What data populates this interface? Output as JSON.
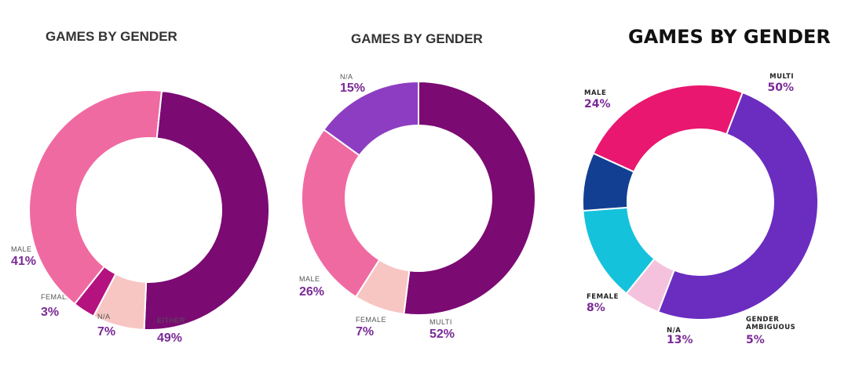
{
  "chart_data": [
    {
      "type": "pie",
      "title": "GAMES BY GENDER",
      "slices": [
        {
          "label": "EITHER",
          "value": 49,
          "value_text": "49%",
          "color": "#7b0a73"
        },
        {
          "label": "N/A",
          "value": 7,
          "value_text": "7%",
          "color": "#f7c6c3"
        },
        {
          "label": "FEMALE",
          "value": 3,
          "value_text": "3%",
          "color": "#b4127f"
        },
        {
          "label": "MALE",
          "value": 41,
          "value_text": "41%",
          "color": "#f06aa2"
        }
      ]
    },
    {
      "type": "pie",
      "title": "GAMES BY GENDER",
      "slices": [
        {
          "label": "MULTI",
          "value": 52,
          "value_text": "52%",
          "color": "#7b0a73"
        },
        {
          "label": "FEMALE",
          "value": 7,
          "value_text": "7%",
          "color": "#f7c6c3"
        },
        {
          "label": "MALE",
          "value": 26,
          "value_text": "26%",
          "color": "#f06aa2"
        },
        {
          "label": "N/A",
          "value": 15,
          "value_text": "15%",
          "color": "#8d3dc2"
        }
      ]
    },
    {
      "type": "pie",
      "title": "GAMES BY GENDER",
      "slices": [
        {
          "label": "MULTI",
          "value": 50,
          "value_text": "50%",
          "color": "#6a2dc0"
        },
        {
          "label": "GENDER AMBIGUOUS",
          "label_lines": [
            "GENDER",
            "AMBIGUOUS"
          ],
          "value": 5,
          "value_text": "5%",
          "color": "#f4c2dc"
        },
        {
          "label": "N/A",
          "value": 13,
          "value_text": "13%",
          "color": "#15c2dc"
        },
        {
          "label": "FEMALE",
          "value": 8,
          "value_text": "8%",
          "color": "#123f92"
        },
        {
          "label": "MALE",
          "value": 24,
          "value_text": "24%",
          "color": "#e9176f"
        }
      ]
    }
  ]
}
